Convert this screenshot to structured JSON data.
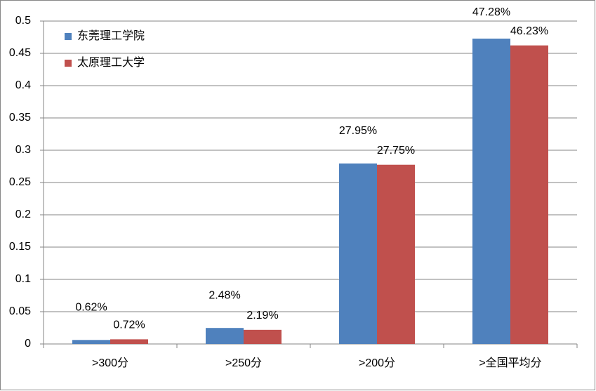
{
  "chart_data": {
    "type": "bar",
    "categories": [
      ">300分",
      ">250分",
      ">200分",
      ">全国平均分"
    ],
    "series": [
      {
        "name": "东莞理工学院",
        "color": "#4f81bd",
        "values": [
          0.0062,
          0.0248,
          0.2795,
          0.4728
        ],
        "value_labels": [
          "0.62%",
          "2.48%",
          "27.95%",
          "47.28%"
        ]
      },
      {
        "name": "太原理工大学",
        "color": "#c0504d",
        "values": [
          0.0072,
          0.0219,
          0.2775,
          0.4623
        ],
        "value_labels": [
          "0.72%",
          "2.19%",
          "27.75%",
          "46.23%"
        ]
      }
    ],
    "ylim": [
      0,
      0.5
    ],
    "yticks": [
      0,
      0.05,
      0.1,
      0.15,
      0.2,
      0.25,
      0.3,
      0.35,
      0.4,
      0.45,
      0.5
    ],
    "grid": true,
    "legend": "top-left"
  }
}
